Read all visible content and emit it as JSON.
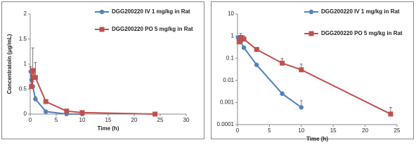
{
  "chart_data": [
    {
      "type": "line",
      "xlabel": "Time (h)",
      "ylabel": "Concentratoin (μg/mL)",
      "xlim": [
        0,
        30
      ],
      "xticks": [
        0,
        5,
        10,
        15,
        20,
        25,
        30
      ],
      "ylim": [
        0,
        2
      ],
      "yticks": [
        0,
        0.5,
        1,
        1.5,
        2
      ],
      "log_y": false,
      "grid": false,
      "legend": "upper right",
      "series": [
        {
          "name": "DGG200220 IV 1 mg/kg in Rat",
          "color": "#4f81bd",
          "marker": "circle",
          "x": [
            0.083,
            0.25,
            0.5,
            1,
            3,
            7,
            10
          ],
          "values": [
            0.85,
            0.68,
            0.55,
            0.3,
            0.05,
            0.0025,
            0.0006
          ],
          "errors": [
            0.1,
            0.1,
            0.1,
            0.05,
            0.01,
            0.0005,
            0.0006
          ]
        },
        {
          "name": "DGG200220 PO 5 mg/kg in Rat",
          "color": "#c0504d",
          "marker": "square",
          "x": [
            0.25,
            0.5,
            1,
            3,
            7,
            10,
            24
          ],
          "values": [
            0.55,
            0.87,
            0.73,
            0.25,
            0.06,
            0.03,
            0.0003
          ],
          "errors": [
            0.15,
            0.45,
            0.3,
            0.03,
            0.04,
            0.025,
            0.0003
          ]
        }
      ]
    },
    {
      "type": "line",
      "xlabel": "Time (h)",
      "xlim": [
        0,
        25
      ],
      "xticks": [
        0,
        5,
        10,
        15,
        20,
        25
      ],
      "ylim": [
        0.0001,
        10
      ],
      "yticks": [
        0.0001,
        0.001,
        0.01,
        0.1,
        1,
        10
      ],
      "log_y": true,
      "grid": false,
      "legend": "upper right",
      "series": [
        {
          "name": "DGG200220 IV 1 mg/kg in Rat",
          "color": "#4f81bd",
          "marker": "circle",
          "x": [
            0.083,
            0.25,
            0.5,
            1,
            3,
            7,
            10
          ],
          "values": [
            0.85,
            0.68,
            0.55,
            0.3,
            0.05,
            0.0025,
            0.0006
          ],
          "errors": [
            0.1,
            0.1,
            0.1,
            0.05,
            0.01,
            0.0005,
            0.0006
          ]
        },
        {
          "name": "DGG200220 PO 5 mg/kg in Rat",
          "color": "#c0504d",
          "marker": "square",
          "x": [
            0.25,
            0.5,
            1,
            3,
            7,
            10,
            24
          ],
          "values": [
            0.55,
            0.87,
            0.73,
            0.25,
            0.06,
            0.03,
            0.0003
          ],
          "errors": [
            0.15,
            0.45,
            0.3,
            0.03,
            0.04,
            0.025,
            0.0003
          ]
        }
      ]
    }
  ]
}
